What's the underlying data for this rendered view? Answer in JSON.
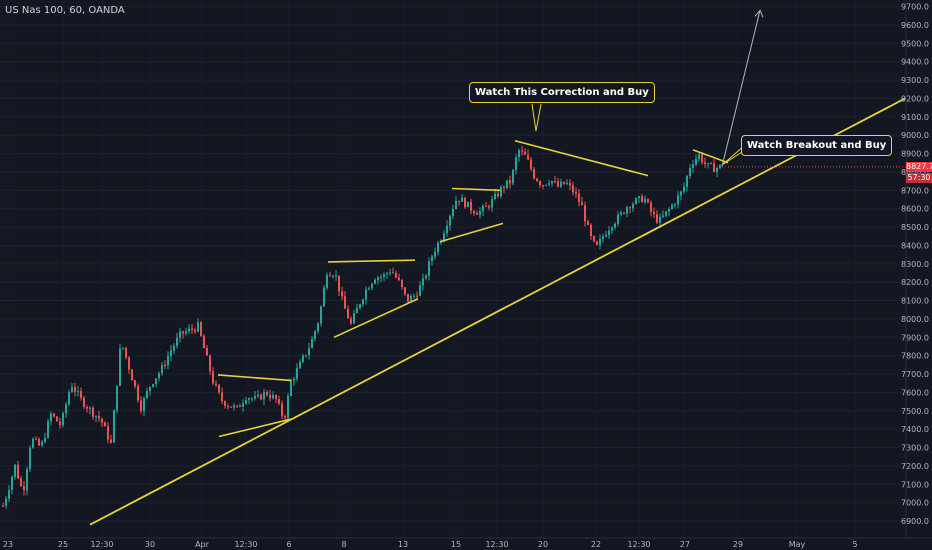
{
  "symbol_label": "US Nas 100, 60, OANDA",
  "annotations": {
    "correction": "Watch This Correction and Buy",
    "breakout": "Watch Breakout and Buy"
  },
  "price_tag": {
    "price": "8827.7",
    "countdown": "57:30"
  },
  "colors": {
    "background": "#131722",
    "up": "#26a69a",
    "down": "#ef5350",
    "trendline": "#e6d23a",
    "arrow": "#b2b5be",
    "axis_text": "#b2b5be",
    "price_tag": "#f23645"
  },
  "chart_data": {
    "type": "candlestick",
    "y_axis": {
      "ticks": [
        "9700.0",
        "9600.0",
        "9500.0",
        "9400.0",
        "9300.0",
        "9200.0",
        "9100.0",
        "9000.0",
        "8900.0",
        "8800.0",
        "8700.0",
        "8600.0",
        "8500.0",
        "8400.0",
        "8300.0",
        "8200.0",
        "8100.0",
        "8000.0",
        "7900.0",
        "7800.0",
        "7700.0",
        "7600.0",
        "7500.0",
        "7400.0",
        "7300.0",
        "7200.0",
        "7100.0",
        "7000.0",
        "6900.0"
      ],
      "range": [
        6860,
        9730
      ]
    },
    "x_axis": {
      "ticks": [
        "23",
        "25",
        "12:30",
        "30",
        "Apr",
        "12:30",
        "6",
        "8",
        "13",
        "15",
        "12:30",
        "20",
        "22",
        "12:30",
        "27",
        "29",
        "May",
        "5"
      ]
    },
    "price_path": [
      [
        0,
        6950
      ],
      [
        6,
        7050
      ],
      [
        14,
        7200
      ],
      [
        22,
        7050
      ],
      [
        30,
        7350
      ],
      [
        40,
        7300
      ],
      [
        50,
        7480
      ],
      [
        60,
        7420
      ],
      [
        70,
        7650
      ],
      [
        80,
        7560
      ],
      [
        90,
        7500
      ],
      [
        100,
        7450
      ],
      [
        110,
        7320
      ],
      [
        120,
        7880
      ],
      [
        130,
        7700
      ],
      [
        140,
        7520
      ],
      [
        150,
        7650
      ],
      [
        160,
        7720
      ],
      [
        170,
        7830
      ],
      [
        180,
        7920
      ],
      [
        190,
        7940
      ],
      [
        197,
        7960
      ],
      [
        205,
        7800
      ],
      [
        212,
        7660
      ],
      [
        220,
        7560
      ],
      [
        228,
        7530
      ],
      [
        236,
        7510
      ],
      [
        245,
        7580
      ],
      [
        255,
        7560
      ],
      [
        265,
        7600
      ],
      [
        275,
        7560
      ],
      [
        283,
        7450
      ],
      [
        290,
        7660
      ],
      [
        300,
        7760
      ],
      [
        310,
        7870
      ],
      [
        318,
        8000
      ],
      [
        326,
        8260
      ],
      [
        334,
        8250
      ],
      [
        342,
        8080
      ],
      [
        350,
        7970
      ],
      [
        358,
        8080
      ],
      [
        366,
        8170
      ],
      [
        374,
        8230
      ],
      [
        382,
        8230
      ],
      [
        390,
        8270
      ],
      [
        398,
        8200
      ],
      [
        406,
        8100
      ],
      [
        414,
        8130
      ],
      [
        422,
        8200
      ],
      [
        432,
        8360
      ],
      [
        440,
        8440
      ],
      [
        448,
        8560
      ],
      [
        456,
        8660
      ],
      [
        462,
        8640
      ],
      [
        470,
        8600
      ],
      [
        478,
        8580
      ],
      [
        486,
        8610
      ],
      [
        494,
        8660
      ],
      [
        502,
        8720
      ],
      [
        510,
        8750
      ],
      [
        517,
        8920
      ],
      [
        525,
        8880
      ],
      [
        533,
        8780
      ],
      [
        541,
        8730
      ],
      [
        549,
        8760
      ],
      [
        557,
        8720
      ],
      [
        565,
        8740
      ],
      [
        573,
        8690
      ],
      [
        581,
        8610
      ],
      [
        589,
        8450
      ],
      [
        595,
        8380
      ],
      [
        603,
        8460
      ],
      [
        611,
        8520
      ],
      [
        619,
        8560
      ],
      [
        627,
        8620
      ],
      [
        635,
        8640
      ],
      [
        643,
        8660
      ],
      [
        651,
        8570
      ],
      [
        658,
        8530
      ],
      [
        666,
        8580
      ],
      [
        674,
        8640
      ],
      [
        682,
        8700
      ],
      [
        690,
        8850
      ],
      [
        698,
        8890
      ],
      [
        706,
        8830
      ],
      [
        714,
        8820
      ],
      [
        721,
        8830
      ]
    ],
    "overlays": {
      "main_trendline": {
        "from": [
          90,
          6880
        ],
        "to": [
          905,
          9200
        ]
      },
      "wedges": [
        {
          "top": [
            [
              218,
              7695
            ],
            [
              291,
              7665
            ]
          ],
          "bottom": [
            [
              219,
              7360
            ],
            [
              291,
              7455
            ]
          ]
        },
        {
          "top": [
            [
              328,
              8310
            ],
            [
              415,
              8320
            ]
          ],
          "bottom": [
            [
              334,
              7900
            ],
            [
              418,
              8110
            ]
          ]
        },
        {
          "top": [
            [
              452,
              8710
            ],
            [
              500,
              8700
            ]
          ],
          "bottom": [
            [
              440,
              8420
            ],
            [
              503,
              8520
            ]
          ]
        },
        {
          "top": [
            [
              515,
              8970
            ],
            [
              648,
              8780
            ]
          ],
          "bottom": []
        },
        {
          "top": [
            [
              693,
              8920
            ],
            [
              728,
              8850
            ]
          ],
          "bottom": []
        }
      ],
      "projection_arrow": {
        "from": [
          722,
          8830
        ],
        "to": [
          760,
          9680
        ]
      }
    }
  }
}
